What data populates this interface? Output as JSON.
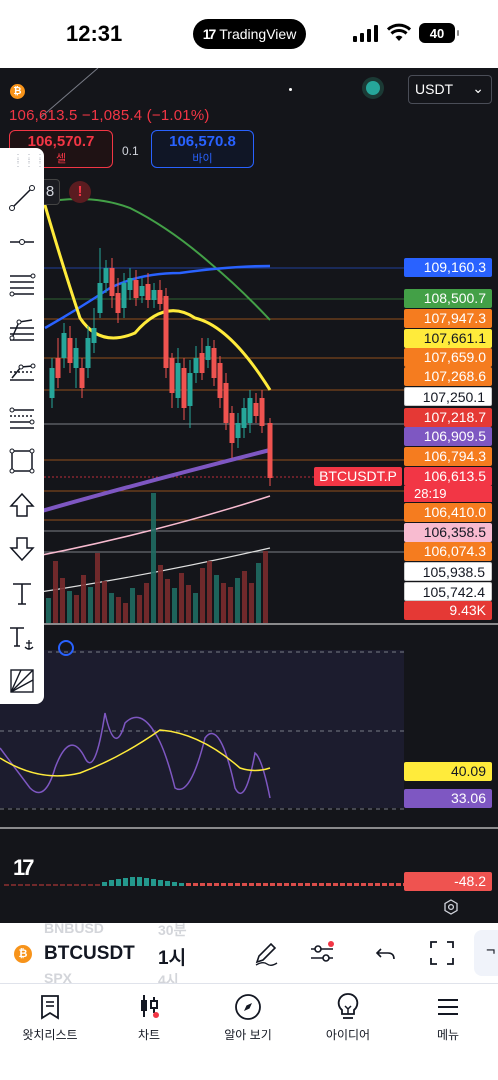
{
  "status_bar": {
    "time": "12:31",
    "app_pill": "TradingView",
    "battery": "40"
  },
  "chart_header": {
    "coin_icon": "bitcoin-icon",
    "ohlc_text": "106,613.5  −1,085.4 (−1.01%)",
    "sell_price": "106,570.7",
    "sell_label": "셀",
    "spread": "0.1",
    "buy_price": "106,570.8",
    "buy_label": "바이",
    "currency": "USDT",
    "badge_number": "8",
    "warning_icon": "!"
  },
  "toolbar": {
    "tools": [
      "trend-line-icon",
      "horizontal-ray-icon",
      "fib-channel-icon",
      "pitchfork-icon",
      "parallel-channel-icon",
      "regression-icon",
      "rectangle-icon",
      "arrow-up-icon",
      "arrow-down-icon",
      "text-icon",
      "anchored-text-icon",
      "gann-fan-icon"
    ]
  },
  "price_labels": [
    {
      "text": "109,160.3",
      "bg": "#2962ff",
      "fg": "#ffffff"
    },
    {
      "text": "108,500.7",
      "bg": "#43a047",
      "fg": "#ffffff"
    },
    {
      "text": "107,947.3",
      "bg": "#f57c1f",
      "fg": "#ffffff"
    },
    {
      "text": "107,661.1",
      "bg": "#ffeb3b",
      "fg": "#131722"
    },
    {
      "text": "107,659.0",
      "bg": "#f57c1f",
      "fg": "#ffffff"
    },
    {
      "text": "107,268.6",
      "bg": "#f57c1f",
      "fg": "#ffffff"
    },
    {
      "text": "107,250.1",
      "bg": "#ffffff",
      "fg": "#131722"
    },
    {
      "text": "107,218.7",
      "bg": "#e53935",
      "fg": "#ffffff"
    },
    {
      "text": "106,909.5",
      "bg": "#7e57c2",
      "fg": "#ffffff"
    },
    {
      "text": "106,794.3",
      "bg": "#f57c1f",
      "fg": "#ffffff"
    },
    {
      "text": "106,613.5",
      "bg": "#f23645",
      "fg": "#ffffff"
    },
    {
      "text": "106,410.0",
      "bg": "#f57c1f",
      "fg": "#ffffff"
    },
    {
      "text": "106,358.5",
      "bg": "#f8bbd0",
      "fg": "#131722"
    },
    {
      "text": "106,074.3",
      "bg": "#f57c1f",
      "fg": "#ffffff"
    },
    {
      "text": "105,938.5",
      "bg": "#ffffff",
      "fg": "#131722"
    },
    {
      "text": "105,742.4",
      "bg": "#ffffff",
      "fg": "#131722"
    },
    {
      "text": "9.43K",
      "bg": "#e53935",
      "fg": "#ffffff"
    }
  ],
  "symbol_label": "BTCUSDT.P",
  "countdown": "28:19",
  "rsi": {
    "value_yellow": "40.09",
    "value_purple": "33.06"
  },
  "macd": {
    "value": "-48.2"
  },
  "colors": {
    "bg": "#14151a",
    "up": "#26a69a",
    "down": "#ef5350",
    "ma_yellow": "#ffeb3b",
    "ma_green": "#43a047",
    "ma_blue": "#2962ff",
    "ma_purple": "#7e57c2"
  },
  "symbol_bar": {
    "ghost_top": "BNBUSD",
    "ghost_top_int": "30분",
    "ghost_bottom": "SPX",
    "ghost_bottom_int": "4시",
    "symbol": "BTCUSDT",
    "interval": "1시",
    "icons": [
      "draw-pen-icon",
      "indicators-icon",
      "undo-icon",
      "fullscreen-icon"
    ],
    "tail": "¬"
  },
  "nav": {
    "items": [
      {
        "label": "왓치리스트",
        "icon": "watchlist-icon"
      },
      {
        "label": "차트",
        "icon": "chart-icon"
      },
      {
        "label": "알아 보기",
        "icon": "compass-icon"
      },
      {
        "label": "아이디어",
        "icon": "lightbulb-icon"
      },
      {
        "label": "메뉴",
        "icon": "menu-icon"
      }
    ]
  }
}
